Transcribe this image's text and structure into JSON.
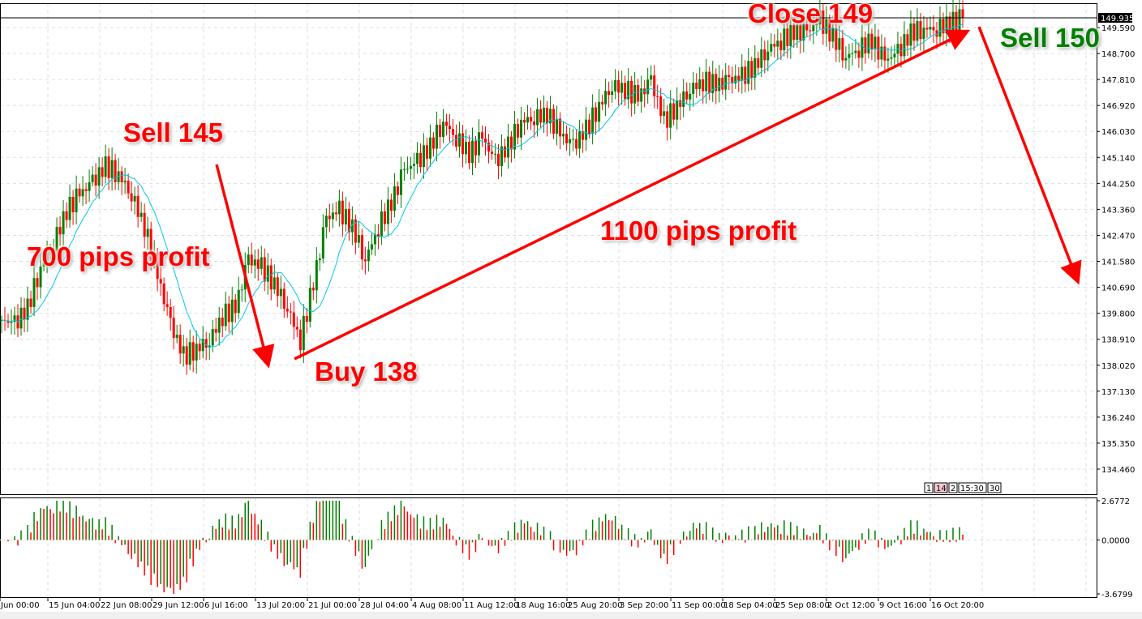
{
  "chart_data": {
    "type": "candlestick",
    "indicator_type": "histogram",
    "closes": [
      139.57,
      139.43,
      139.99,
      141.37,
      142.21,
      143.32,
      143.87,
      144.29,
      144.84,
      144.57,
      143.87,
      142.76,
      141.1,
      139.43,
      138.32,
      138.6,
      138.88,
      139.71,
      139.99,
      141.65,
      141.37,
      140.82,
      139.99,
      138.88,
      140.82,
      143.04,
      143.32,
      142.76,
      141.65,
      142.76,
      143.59,
      144.7,
      144.98,
      145.53,
      146.37,
      145.81,
      145.26,
      145.81,
      144.98,
      145.53,
      146.37,
      146.51,
      146.64,
      145.95,
      145.53,
      146.09,
      146.92,
      147.62,
      147.48,
      147.2,
      147.76,
      146.37,
      146.92,
      147.48,
      147.76,
      147.62,
      147.76,
      147.9,
      148.31,
      148.87,
      149.15,
      149.42,
      149.42,
      149.84,
      149.28,
      148.59,
      148.87,
      149.15,
      148.45,
      148.73,
      149.42,
      149.56,
      149.56,
      149.76,
      149.92
    ],
    "ylim": [
      133.9,
      150.3
    ],
    "y_ticks": [
      "149.590",
      "148.700",
      "147.810",
      "146.920",
      "146.030",
      "145.140",
      "144.250",
      "143.360",
      "142.470",
      "141.580",
      "140.690",
      "139.800",
      "138.910",
      "138.020",
      "137.130",
      "136.240",
      "135.350",
      "134.460"
    ],
    "current_price": "149.935",
    "x_ticks": [
      "Jun 00:00",
      "15 Jun 04:00",
      "22 Jun 08:00",
      "29 Jun 12:00",
      "6 Jul 16:00",
      "13 Jul 20:00",
      "21 Jul 00:00",
      "28 Jul 04:00",
      "4 Aug 08:00",
      "11 Aug 12:00",
      "18 Aug 16:00",
      "25 Aug 20:00",
      "3 Sep 20:00",
      "11 Sep 00:00",
      "18 Sep 04:00",
      "25 Sep 08:00",
      "2 Oct 12:00",
      "9 Oct 16:00",
      "16 Oct 20:00"
    ],
    "indicator_ticks": [
      "2.6772",
      "0.0000",
      "-3.6799"
    ],
    "indicator_range": [
      -3.6799,
      2.6772
    ],
    "grid": true,
    "colors": {
      "up": "#008000",
      "down": "#ff0000",
      "ma": "#00c8e8",
      "annotation": "#ff0000",
      "sell_target": "#008000"
    },
    "annotations": [
      "Sell 145",
      "700 pips profit",
      "Buy 138",
      "1100 pips profit",
      "Close 149",
      "Sell 150"
    ],
    "session_tags": [
      "1",
      "14",
      "2",
      "15:30",
      "30"
    ]
  }
}
